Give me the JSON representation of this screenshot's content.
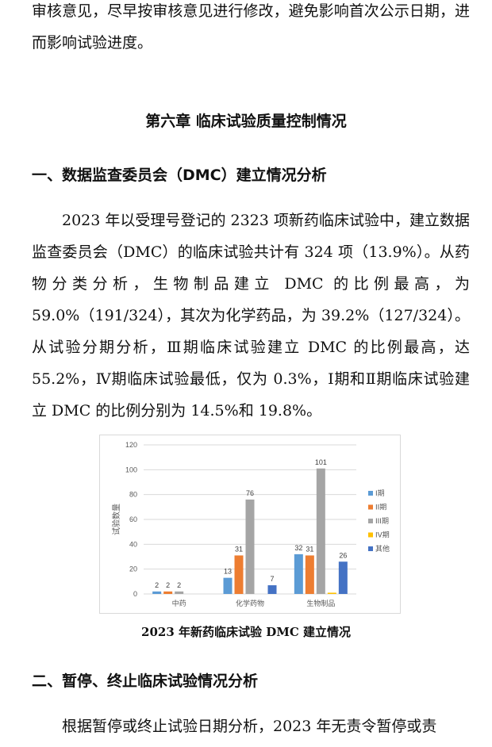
{
  "para0": "审核意见，尽早按审核意见进行修改，避免影响首次公示日期，进而影响试验进度。",
  "chapter_title": "第六章 临床试验质量控制情况",
  "section1_title": "一、数据监查委员会（DMC）建立情况分析",
  "para1": "2023 年以受理号登记的 2323 项新药临床试验中，建立数据监查委员会（DMC）的临床试验共计有 324 项（13.9%）。从药物分类分析，生物制品建立 DMC 的比例最高，为 59.0%（191/324），其次为化学药品，为 39.2%（127/324）。从试验分期分析，Ⅲ期临床试验建立 DMC 的比例最高，达 55.2%，Ⅳ期临床试验最低，仅为 0.3%，Ⅰ期和Ⅱ期临床试验建立 DMC 的比例分别为 14.5%和 19.8%。",
  "caption": "2023 年新药临床试验 DMC 建立情况",
  "section2_title": "二、暂停、终止临床试验情况分析",
  "para2": "根据暂停或终止试验日期分析，2023 年无责令暂停或责",
  "chart_data": {
    "type": "bar",
    "categories": [
      "中药",
      "化学药物",
      "生物制品"
    ],
    "series": [
      {
        "name": "I期",
        "values": [
          2,
          13,
          32
        ],
        "color": "#5b9bd5"
      },
      {
        "name": "II期",
        "values": [
          2,
          31,
          31
        ],
        "color": "#ed7d31"
      },
      {
        "name": "III期",
        "values": [
          2,
          76,
          101
        ],
        "color": "#a5a5a5"
      },
      {
        "name": "IV期",
        "values": [
          0,
          0,
          1
        ],
        "color": "#ffc000"
      },
      {
        "name": "其他",
        "values": [
          0,
          7,
          26
        ],
        "color": "#4472c4"
      }
    ],
    "data_labels": [
      [
        2,
        13,
        32
      ],
      [
        2,
        31,
        31
      ],
      [
        2,
        76,
        101
      ],
      [
        null,
        null,
        null
      ],
      [
        null,
        7,
        26
      ]
    ],
    "ylabel": "试验数量",
    "ylim": [
      0,
      120
    ],
    "yticks": [
      0,
      20,
      40,
      60,
      80,
      100,
      120
    ],
    "grid": true,
    "legend": "right"
  }
}
